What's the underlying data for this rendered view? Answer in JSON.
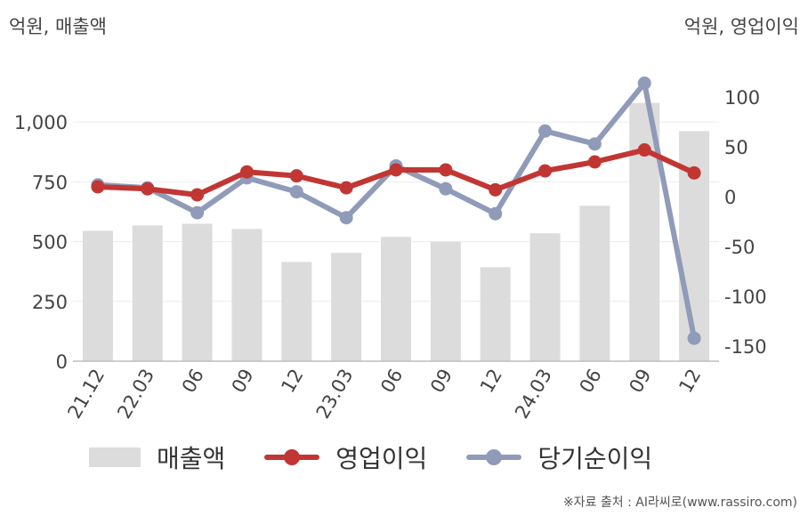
{
  "chart_data": {
    "type": "bar+line",
    "left_unit": "억원, 매출액",
    "right_unit": "억원, 영업이익",
    "categories": [
      "21.12",
      "22.03",
      "06",
      "09",
      "12",
      "23.03",
      "06",
      "09",
      "12",
      "24.03",
      "06",
      "09",
      "12"
    ],
    "left_axis": {
      "ylim": [
        0,
        1250
      ],
      "ticks": [
        "0",
        "250",
        "500",
        "750",
        "1,000"
      ],
      "tick_values": [
        0,
        250,
        500,
        750,
        1000
      ]
    },
    "right_axis": {
      "ylim": [
        -165,
        135
      ],
      "ticks": [
        "-150",
        "-100",
        "-50",
        "0",
        "50",
        "100"
      ],
      "tick_values": [
        -150,
        -100,
        -50,
        0,
        50,
        100
      ]
    },
    "series": [
      {
        "name": "매출액",
        "kind": "bar",
        "axis": "left",
        "color": "#dcdcdc",
        "values": [
          545,
          568,
          575,
          553,
          415,
          453,
          520,
          500,
          393,
          535,
          650,
          1080,
          962
        ]
      },
      {
        "name": "영업이익",
        "kind": "line",
        "axis": "right",
        "color": "#c13633",
        "values": [
          10,
          8,
          2,
          25,
          21,
          9,
          27,
          27,
          7,
          26,
          35,
          47,
          24
        ]
      },
      {
        "name": "당기순이익",
        "kind": "line",
        "axis": "right",
        "color": "#8f9bb8",
        "values": [
          12,
          9,
          -16,
          19,
          5,
          -21,
          31,
          8,
          -17,
          66,
          53,
          114,
          -142
        ]
      }
    ],
    "grid": true,
    "legend_position": "bottom"
  },
  "source": "※자료 출처 : AI라씨로(www.rassiro.com)"
}
